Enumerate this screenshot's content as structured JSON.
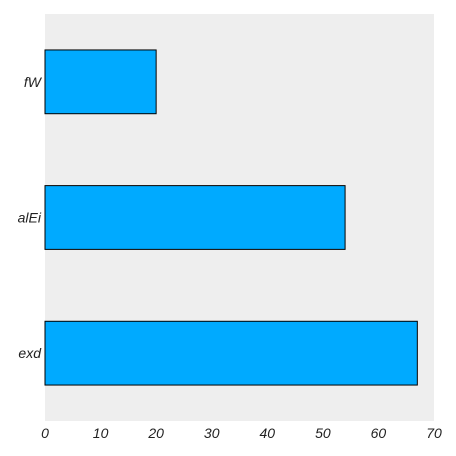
{
  "chart_data": {
    "type": "bar",
    "orientation": "horizontal",
    "categories": [
      "fW",
      "alEi",
      "exd"
    ],
    "values": [
      20,
      54,
      67
    ],
    "title": "",
    "xlabel": "",
    "ylabel": "",
    "xlim": [
      0,
      70
    ],
    "xticks": [
      0,
      10,
      20,
      30,
      40,
      50,
      60,
      70
    ],
    "grid": false,
    "legend": "none",
    "colors": {
      "bar_fill": "#00aaff",
      "bar_edge": "#000000",
      "plot_background": "#eeeeee"
    }
  }
}
